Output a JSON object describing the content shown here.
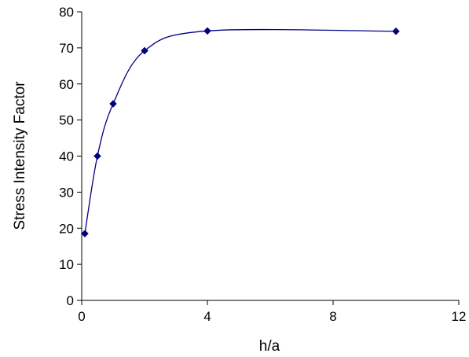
{
  "chart_data": {
    "type": "line",
    "title": "",
    "xlabel": "h/a",
    "ylabel": "Stress Intensity Factor",
    "xlim": [
      0,
      12
    ],
    "ylim": [
      0,
      80
    ],
    "x_ticks": [
      "0",
      "4",
      "8",
      "12"
    ],
    "y_ticks": [
      "0",
      "10",
      "20",
      "30",
      "40",
      "50",
      "60",
      "70",
      "80"
    ],
    "grid": false,
    "legend": "none",
    "smooth": true,
    "series": [
      {
        "color": "#000080",
        "marker": "diamond",
        "x": [
          0.1,
          0.5,
          1,
          2,
          4,
          10
        ],
        "y": [
          18.5,
          40,
          54.5,
          69.2,
          74.7,
          74.6
        ]
      }
    ]
  }
}
